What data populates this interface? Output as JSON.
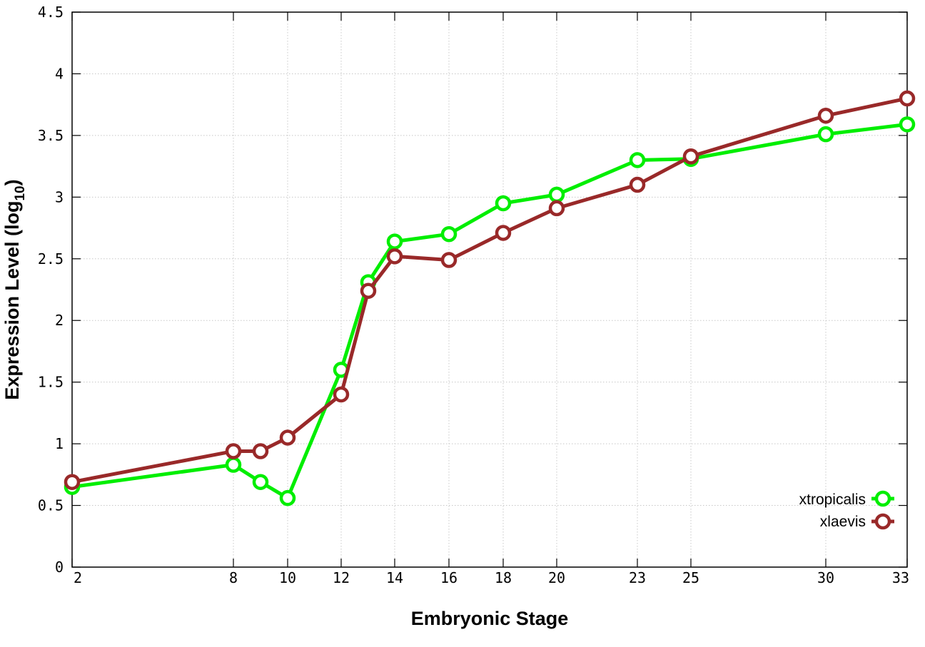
{
  "chart_data": {
    "type": "line",
    "xlabel": "Embryonic Stage",
    "ylabel_main": "Expression Level (log",
    "ylabel_sub": "10",
    "ylabel_end": ")",
    "x": [
      2,
      8,
      9,
      10,
      12,
      13,
      14,
      16,
      18,
      20,
      23,
      25,
      30,
      33
    ],
    "x_tick_labels": [
      "2",
      "8",
      "10",
      "12",
      "14",
      "16",
      "18",
      "20",
      "23",
      "25",
      "30",
      "33"
    ],
    "y_tick_labels": [
      "0",
      "0.5",
      "1",
      "1.5",
      "2",
      "2.5",
      "3",
      "3.5",
      "4",
      "4.5"
    ],
    "ylim": [
      0,
      4.5
    ],
    "grid": true,
    "legend_position": "bottom-right",
    "series": [
      {
        "name": "xtropicalis",
        "color": "#00ee00",
        "values": [
          0.65,
          0.83,
          0.69,
          0.56,
          1.6,
          2.31,
          2.64,
          2.7,
          2.95,
          3.02,
          3.3,
          3.31,
          3.51,
          3.59
        ]
      },
      {
        "name": "xlaevis",
        "color": "#992929",
        "values": [
          0.69,
          0.94,
          0.94,
          1.05,
          1.4,
          2.24,
          2.52,
          2.49,
          2.71,
          2.91,
          3.1,
          3.33,
          3.66,
          3.8
        ]
      }
    ]
  }
}
